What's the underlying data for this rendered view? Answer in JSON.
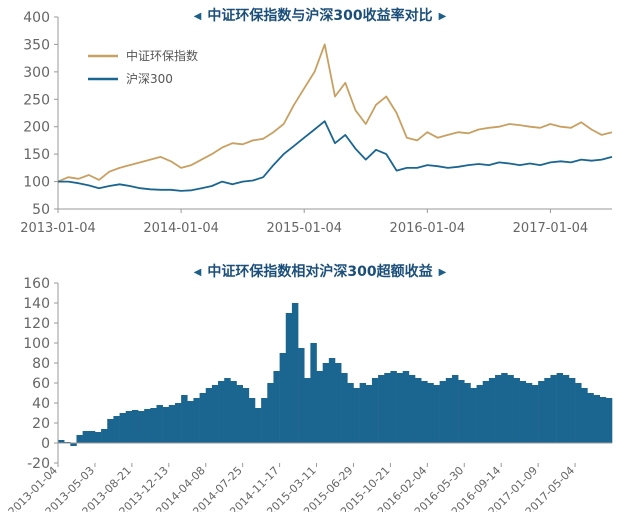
{
  "colors": {
    "accent": "#1b5f8a",
    "gold": "#c8a062",
    "blue": "#1b6690",
    "axis": "#999999",
    "text": "#666666"
  },
  "chart_data": [
    {
      "type": "line",
      "title": "中证环保指数与沪深300收益率对比",
      "xlabel": "",
      "ylabel": "",
      "x_tick_labels": [
        "2013-01-04",
        "2014-01-04",
        "2015-01-04",
        "2016-01-04",
        "2017-01-04"
      ],
      "x_ticks": [
        0,
        12,
        24,
        36,
        48
      ],
      "xlim": [
        0,
        54
      ],
      "ylim": [
        50,
        400
      ],
      "yticks": [
        50,
        100,
        150,
        200,
        250,
        300,
        350,
        400
      ],
      "grid": false,
      "legend_position": "top-left",
      "x": [
        0,
        1,
        2,
        3,
        4,
        5,
        6,
        7,
        8,
        9,
        10,
        11,
        12,
        13,
        14,
        15,
        16,
        17,
        18,
        19,
        20,
        21,
        22,
        23,
        24,
        25,
        26,
        27,
        28,
        29,
        30,
        31,
        32,
        33,
        34,
        35,
        36,
        37,
        38,
        39,
        40,
        41,
        42,
        43,
        44,
        45,
        46,
        47,
        48,
        49,
        50,
        51,
        52,
        53,
        54
      ],
      "series": [
        {
          "name": "中证环保指数",
          "color": "#c8a062",
          "values": [
            100,
            108,
            105,
            112,
            103,
            118,
            125,
            130,
            135,
            140,
            145,
            137,
            125,
            130,
            140,
            150,
            162,
            170,
            168,
            175,
            178,
            190,
            205,
            240,
            270,
            300,
            350,
            255,
            280,
            230,
            205,
            240,
            255,
            225,
            180,
            175,
            190,
            180,
            185,
            190,
            188,
            195,
            198,
            200,
            205,
            203,
            200,
            198,
            205,
            200,
            198,
            208,
            195,
            185,
            190
          ]
        },
        {
          "name": "沪深300",
          "color": "#1b6690",
          "values": [
            100,
            100,
            97,
            93,
            88,
            92,
            95,
            92,
            88,
            86,
            85,
            85,
            83,
            84,
            88,
            92,
            100,
            95,
            100,
            102,
            108,
            130,
            150,
            165,
            180,
            195,
            210,
            170,
            185,
            160,
            140,
            158,
            150,
            120,
            125,
            125,
            130,
            128,
            125,
            127,
            130,
            132,
            130,
            135,
            133,
            130,
            133,
            130,
            135,
            137,
            135,
            140,
            138,
            140,
            145
          ]
        }
      ]
    },
    {
      "type": "bar",
      "title": "中证环保指数相对沪深300超额收益",
      "xlabel": "",
      "ylabel": "",
      "x_tick_labels": [
        "2013-01-04",
        "2013-05-03",
        "2013-08-21",
        "2013-12-13",
        "2014-04-08",
        "2014-07-25",
        "2014-11-17",
        "2015-03-11",
        "2015-06-29",
        "2015-10-21",
        "2016-02-04",
        "2016-05-30",
        "2016-09-14",
        "2017-01-09",
        "2017-05-04"
      ],
      "x_ticks": [
        0,
        4,
        8,
        12,
        16,
        20,
        24,
        28,
        32,
        36,
        40,
        44,
        48,
        52,
        56
      ],
      "xlim": [
        0,
        60
      ],
      "ylim": [
        -20,
        160
      ],
      "yticks": [
        -20,
        0,
        20,
        40,
        60,
        80,
        100,
        120,
        140,
        160
      ],
      "grid": false,
      "series": [
        {
          "name": "",
          "color": "#1b6690",
          "values": [
            3,
            1,
            -3,
            8,
            12,
            12,
            11,
            14,
            24,
            27,
            30,
            32,
            33,
            32,
            34,
            35,
            38,
            36,
            38,
            40,
            48,
            42,
            45,
            50,
            55,
            58,
            62,
            65,
            62,
            58,
            55,
            45,
            35,
            45,
            60,
            72,
            90,
            130,
            140,
            95,
            65,
            100,
            72,
            80,
            85,
            80,
            70,
            60,
            55,
            60,
            58,
            65,
            68,
            70,
            72,
            70,
            72,
            68,
            65,
            62,
            60,
            58,
            62,
            65,
            68,
            63,
            60,
            55,
            58,
            62,
            65,
            68,
            70,
            68,
            65,
            62,
            60,
            58,
            62,
            65,
            68,
            70,
            68,
            65,
            60,
            55,
            50,
            48,
            46,
            45
          ]
        }
      ]
    }
  ]
}
